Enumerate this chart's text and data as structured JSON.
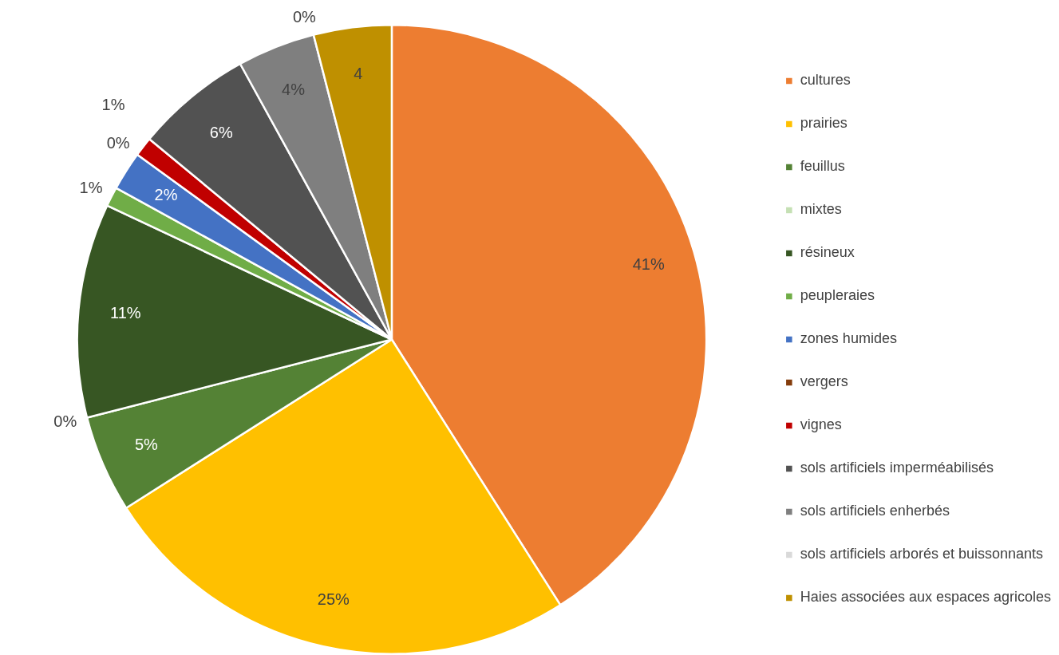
{
  "chart_data": {
    "type": "pie",
    "categories": [
      "cultures",
      "prairies",
      "feuillus",
      "mixtes",
      "résineux",
      "peupleraies",
      "zones humides",
      "vergers",
      "vignes",
      "sols artificiels imperméabilisés",
      "sols artificiels enherbés",
      "sols artificiels arborés et buissonnants",
      "Haies associées aux espaces agricoles"
    ],
    "values": [
      41,
      25,
      5,
      0,
      11,
      1,
      2,
      0,
      1,
      6,
      4,
      0,
      4
    ],
    "value_labels": [
      "41%",
      "25%",
      "5%",
      "0%",
      "11%",
      "1%",
      "2%",
      "0%",
      "1%",
      "6%",
      "4%",
      "0%",
      "4"
    ],
    "colors": [
      "#ed7d31",
      "#ffc000",
      "#548235",
      "#c5e0b4",
      "#375623",
      "#70ad47",
      "#4472c4",
      "#843c0c",
      "#c00000",
      "#525252",
      "#7f7f7f",
      "#d9d9d9",
      "#bf9000"
    ],
    "legend": "right"
  }
}
